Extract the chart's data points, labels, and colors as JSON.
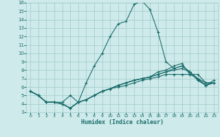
{
  "xlabel": "Humidex (Indice chaleur)",
  "bg_color": "#ceeaea",
  "grid_color": "#9ec8c8",
  "line_color": "#1a6b6b",
  "xlim": [
    -0.5,
    23.5
  ],
  "ylim": [
    3,
    16
  ],
  "xticks": [
    0,
    1,
    2,
    3,
    4,
    5,
    6,
    7,
    8,
    9,
    10,
    11,
    12,
    13,
    14,
    15,
    16,
    17,
    18,
    19,
    20,
    21,
    22,
    23
  ],
  "yticks": [
    3,
    4,
    5,
    6,
    7,
    8,
    9,
    10,
    11,
    12,
    13,
    14,
    15,
    16
  ],
  "series": [
    [
      5.5,
      5.0,
      4.2,
      4.2,
      4.2,
      5.0,
      4.2,
      6.5,
      8.5,
      10.0,
      12.0,
      13.5,
      13.8,
      15.8,
      16.2,
      15.2,
      12.5,
      9.0,
      8.2,
      8.5,
      7.8,
      6.8,
      6.2,
      6.5
    ],
    [
      5.5,
      5.0,
      4.2,
      4.2,
      4.0,
      3.5,
      4.2,
      4.5,
      5.0,
      5.5,
      5.8,
      6.0,
      6.2,
      6.5,
      6.8,
      7.0,
      7.2,
      7.5,
      7.5,
      7.5,
      7.5,
      7.5,
      6.5,
      6.5
    ],
    [
      5.5,
      5.0,
      4.2,
      4.2,
      4.0,
      3.5,
      4.2,
      4.5,
      5.0,
      5.5,
      5.8,
      6.2,
      6.5,
      6.8,
      7.0,
      7.2,
      7.5,
      7.8,
      8.0,
      8.2,
      7.8,
      6.8,
      6.2,
      6.5
    ],
    [
      5.5,
      5.0,
      4.2,
      4.2,
      4.0,
      3.5,
      4.2,
      4.5,
      5.0,
      5.5,
      5.8,
      6.2,
      6.5,
      6.8,
      7.0,
      7.2,
      7.8,
      8.0,
      8.5,
      8.8,
      7.5,
      7.0,
      6.5,
      6.5
    ],
    [
      5.5,
      5.0,
      4.2,
      4.2,
      4.0,
      3.5,
      4.2,
      4.5,
      5.0,
      5.5,
      5.8,
      6.2,
      6.5,
      6.8,
      7.0,
      7.2,
      7.5,
      7.8,
      8.2,
      8.5,
      7.8,
      7.0,
      6.2,
      6.8
    ]
  ]
}
